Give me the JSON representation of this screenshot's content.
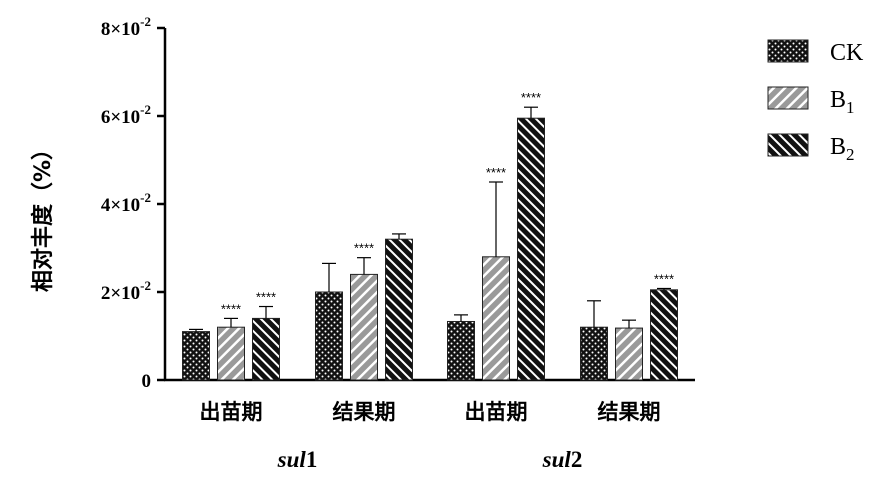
{
  "chart_data": {
    "type": "bar",
    "ylabel": "相对丰度（%）",
    "ylim": [
      0,
      0.08
    ],
    "yticks": [
      {
        "value": 0,
        "base": "0",
        "exp": ""
      },
      {
        "value": 0.02,
        "base": "2×10",
        "exp": "-2"
      },
      {
        "value": 0.04,
        "base": "4×10",
        "exp": "-2"
      },
      {
        "value": 0.06,
        "base": "6×10",
        "exp": "-2"
      },
      {
        "value": 0.08,
        "base": "8×10",
        "exp": "-2"
      }
    ],
    "categories": [
      "出苗期",
      "结果期",
      "出苗期",
      "结果期"
    ],
    "groups": [
      {
        "prefix": "sul",
        "suffix": "1",
        "categories": [
          0,
          1
        ]
      },
      {
        "prefix": "sul",
        "suffix": "2",
        "categories": [
          2,
          3
        ]
      }
    ],
    "series": [
      {
        "name": "CK",
        "sub": "",
        "pattern": "dots",
        "values": [
          0.011,
          0.02,
          0.0133,
          0.012
        ],
        "errors": [
          0.0005,
          0.0065,
          0.0015,
          0.006
        ],
        "significance": [
          "",
          "",
          "",
          ""
        ]
      },
      {
        "name": "B",
        "sub": "1",
        "pattern": "gray-diagonal",
        "values": [
          0.012,
          0.024,
          0.028,
          0.0118
        ],
        "errors": [
          0.002,
          0.0038,
          0.017,
          0.0018
        ],
        "significance": [
          "****",
          "****",
          "****",
          ""
        ]
      },
      {
        "name": "B",
        "sub": "2",
        "pattern": "black-diagonal",
        "values": [
          0.014,
          0.032,
          0.0595,
          0.0205
        ],
        "errors": [
          0.0027,
          0.0012,
          0.0025,
          0.0003
        ],
        "significance": [
          "****",
          "",
          "****",
          "****"
        ]
      }
    ],
    "legend_position": "right"
  }
}
